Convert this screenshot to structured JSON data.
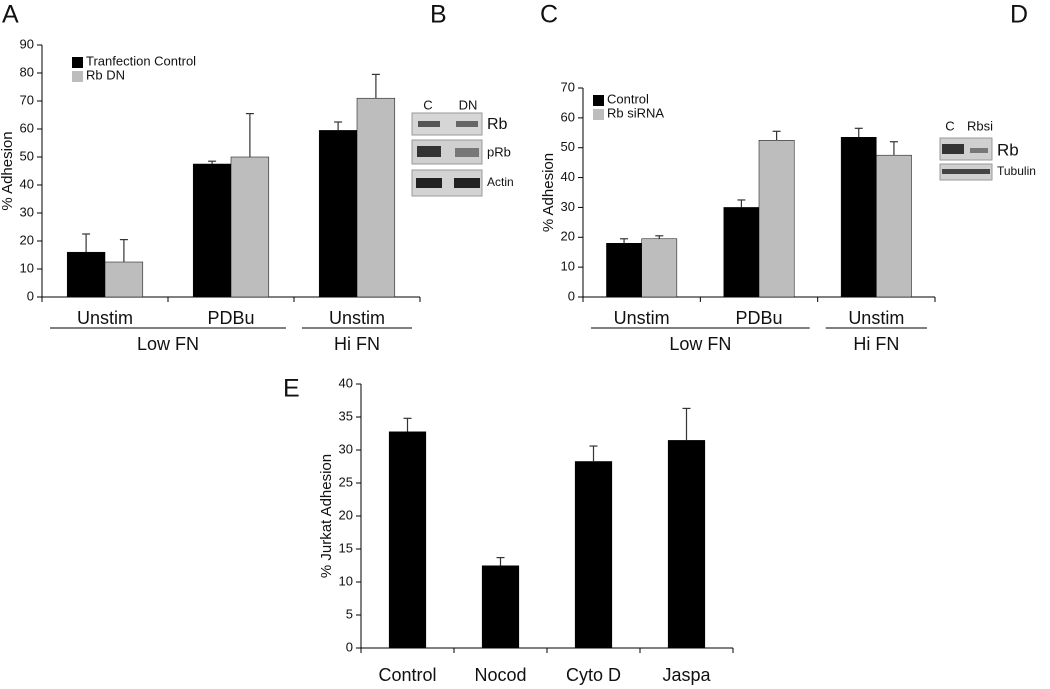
{
  "panel_labels": [
    "A",
    "B",
    "C",
    "D",
    "E"
  ],
  "chart_data": [
    {
      "type": "bar",
      "y_label": "% Adhesion",
      "categories": [
        "Unstim",
        "PDBu",
        "Unstim"
      ],
      "groups": [
        "Low FN",
        "Low FN",
        "Hi FN"
      ],
      "series": [
        {
          "name": "Tranfection Control",
          "color": "#000000",
          "values": [
            16,
            47.5,
            59.5
          ],
          "errors": [
            6.5,
            1,
            3
          ]
        },
        {
          "name": "Rb DN",
          "color": "#bdbdbd",
          "values": [
            12.5,
            50,
            71
          ],
          "errors": [
            8,
            15.5,
            8.5
          ]
        }
      ],
      "ylim": [
        0,
        90
      ],
      "yticks": [
        0,
        10,
        20,
        30,
        40,
        50,
        60,
        70,
        80,
        90
      ],
      "legend": "top-left"
    },
    {
      "type": "bar",
      "y_label": "% Adhesion",
      "categories": [
        "Unstim",
        "PDBu",
        "Unstim"
      ],
      "groups": [
        "Low FN",
        "Low FN",
        "Hi FN"
      ],
      "series": [
        {
          "name": "Control",
          "color": "#000000",
          "values": [
            18,
            30,
            53.5
          ],
          "errors": [
            1.5,
            2.5,
            3
          ]
        },
        {
          "name": "Rb siRNA",
          "color": "#bdbdbd",
          "values": [
            19.5,
            52.5,
            47.5
          ],
          "errors": [
            1,
            3,
            4.5
          ]
        }
      ],
      "ylim": [
        0,
        70
      ],
      "yticks": [
        0,
        10,
        20,
        30,
        40,
        50,
        60,
        70
      ],
      "legend": "top-left"
    },
    {
      "type": "bar",
      "y_label": "% Jurkat Adhesion",
      "categories": [
        "Control",
        "Nocod",
        "Cyto D",
        "Jaspa"
      ],
      "values": [
        32.8,
        12.5,
        28.3,
        31.5
      ],
      "errors": [
        2,
        1.2,
        2.3,
        4.8
      ],
      "color": "#000000",
      "ylim": [
        0,
        40
      ],
      "yticks": [
        0,
        5,
        10,
        15,
        20,
        25,
        30,
        35,
        40
      ]
    }
  ],
  "blots": [
    {
      "columns": [
        "C",
        "DN"
      ],
      "rows": [
        "Rb",
        "pRb",
        "Actin"
      ]
    },
    {
      "columns": [
        "C",
        "Rbsi"
      ],
      "rows": [
        "Rb",
        "Tubulin"
      ]
    }
  ]
}
